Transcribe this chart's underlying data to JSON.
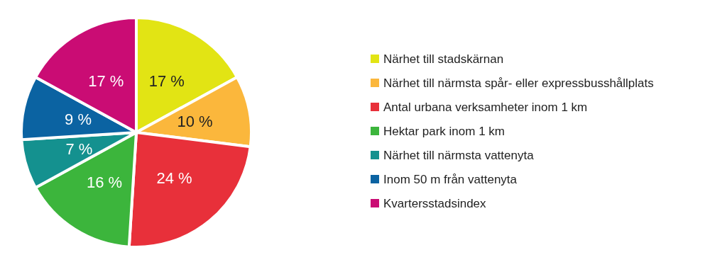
{
  "chart_data": {
    "type": "pie",
    "categories": [
      "Närhet till stadskärnan",
      "Närhet till närmsta spår- eller expressbusshållplats",
      "Antal urbana verksamheter inom 1 km",
      "Hektar park inom 1 km",
      "Närhet till närmsta vattenyta",
      "Inom 50 m från vattenyta",
      "Kvartersstadsindex"
    ],
    "values": [
      17,
      10,
      24,
      16,
      7,
      9,
      17
    ],
    "colors": [
      "#e2e414",
      "#fbb73c",
      "#e8303a",
      "#3cb53c",
      "#14918f",
      "#0b63a2",
      "#ca0c74"
    ],
    "value_labels": [
      "17 %",
      "10 %",
      "24 %",
      "16 %",
      "7 %",
      "9 %",
      "17 %"
    ],
    "legend": "right"
  }
}
